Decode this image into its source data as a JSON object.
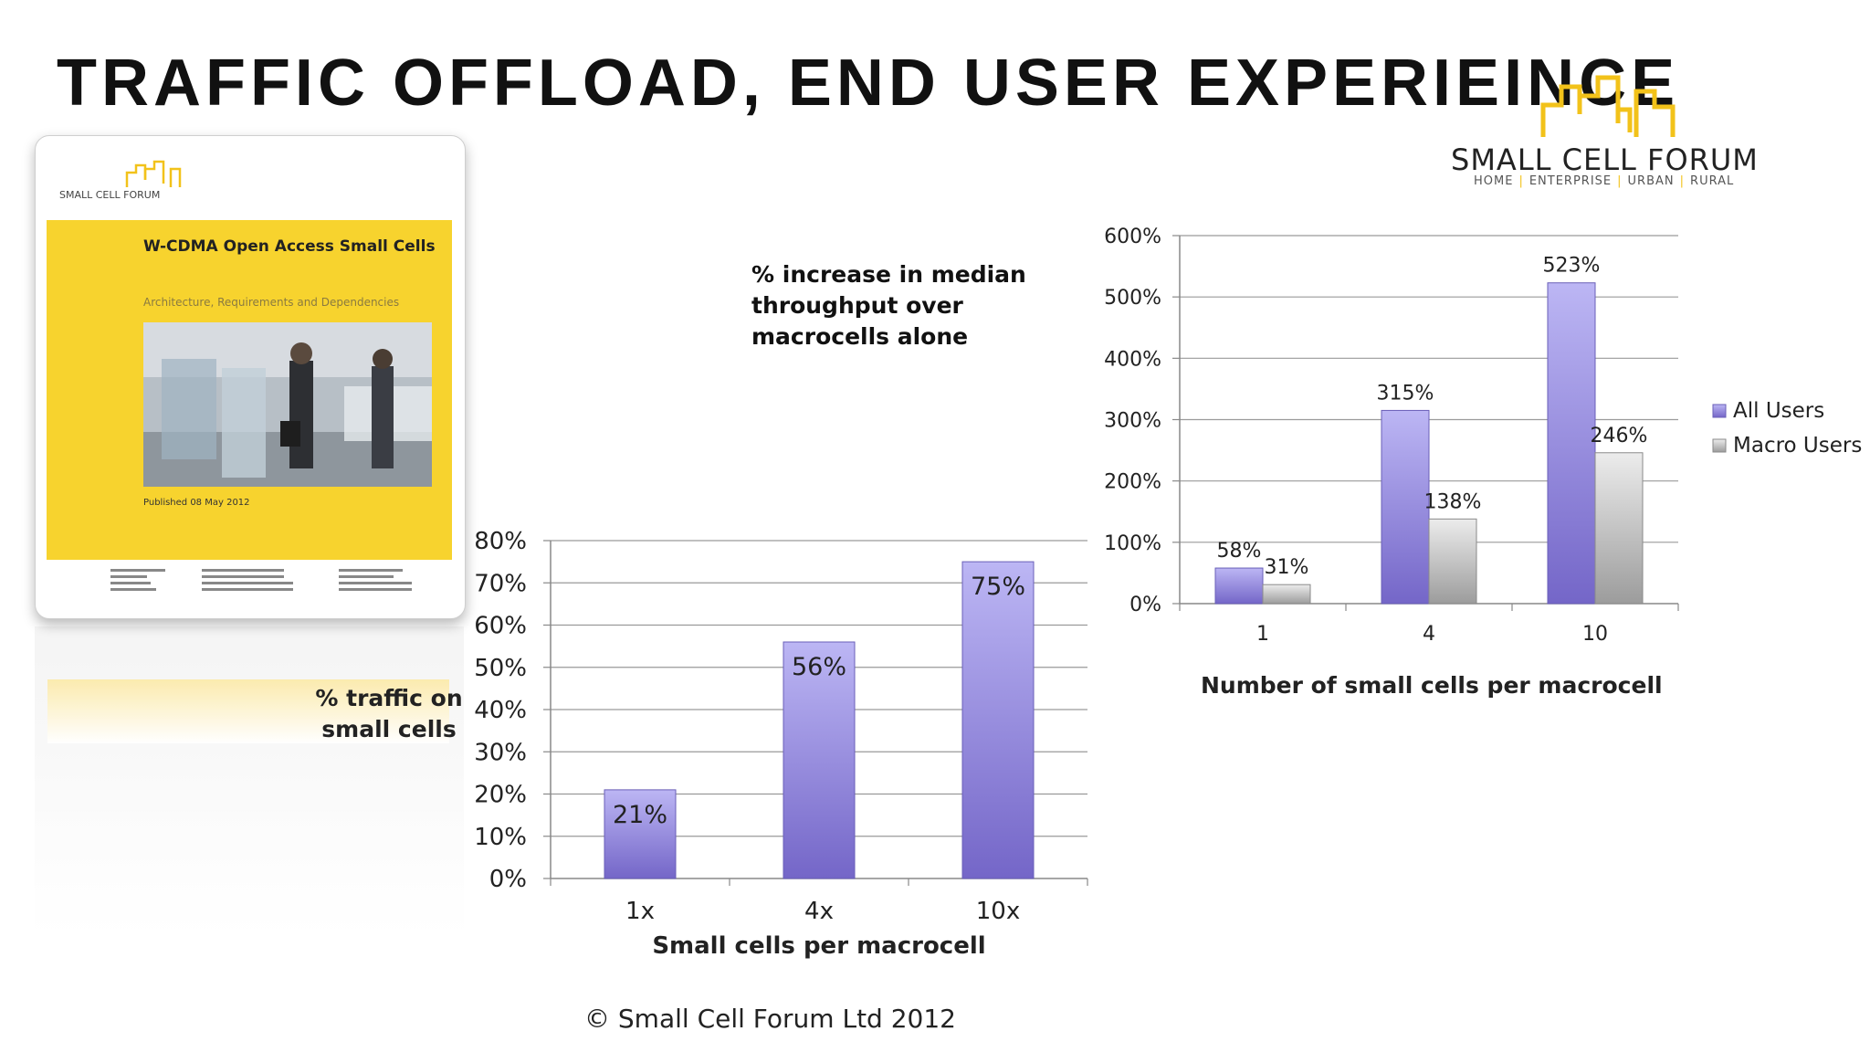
{
  "slide": {
    "title": "TRAFFIC OFFLOAD, END USER EXPERIEINCE",
    "footer": "© Small Cell Forum Ltd 2012"
  },
  "logo": {
    "name": "SMALL CELL FORUM",
    "tagline": [
      "HOME",
      "ENTERPRISE",
      "URBAN",
      "RURAL"
    ],
    "accent_color": "#f2c21a"
  },
  "report_cover": {
    "forum_label": "SMALL CELL FORUM",
    "title": "W-CDMA Open Access Small Cells",
    "subtitle": "Architecture, Requirements and Dependencies",
    "published": "Published 08 May 2012",
    "cover_color": "#f7d32e"
  },
  "chart_data": [
    {
      "type": "bar",
      "title": "",
      "ylabel": "% traffic on small cells",
      "xlabel": "Small cells per macrocell",
      "categories": [
        "1x",
        "4x",
        "10x"
      ],
      "values": [
        21,
        56,
        75
      ],
      "data_labels": [
        "21%",
        "56%",
        "75%"
      ],
      "ylim": [
        0,
        80
      ],
      "yticks": [
        "0%",
        "10%",
        "20%",
        "30%",
        "40%",
        "50%",
        "60%",
        "70%",
        "80%"
      ],
      "grid": true,
      "bar_color": "#8f84d8"
    },
    {
      "type": "bar",
      "title": "% increase in median throughput over macrocells alone",
      "xlabel": "Number of small cells per macrocell",
      "ylabel": "",
      "categories": [
        "1",
        "4",
        "10"
      ],
      "series": [
        {
          "name": "All Users",
          "values": [
            58,
            315,
            523
          ],
          "data_labels": [
            "58%",
            "315%",
            "523%"
          ],
          "color": "#8f84d8"
        },
        {
          "name": "Macro Users",
          "values": [
            31,
            138,
            246
          ],
          "data_labels": [
            "31%",
            "138%",
            "246%"
          ],
          "color": "#a9a9a9"
        }
      ],
      "ylim": [
        0,
        600
      ],
      "yticks": [
        "0%",
        "100%",
        "200%",
        "300%",
        "400%",
        "500%",
        "600%"
      ],
      "grid": true,
      "legend": "right"
    }
  ]
}
